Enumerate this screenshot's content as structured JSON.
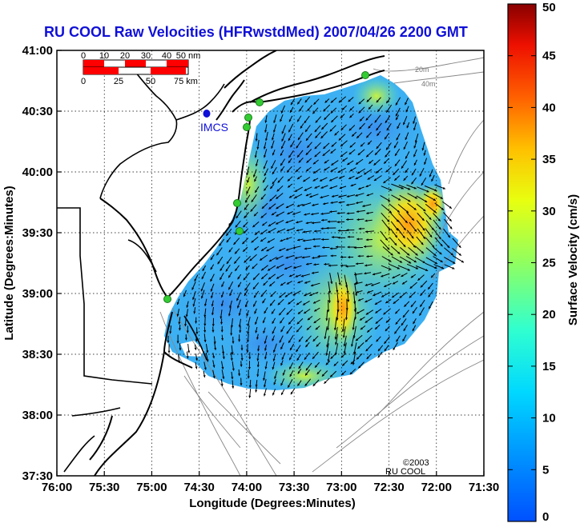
{
  "title": "RU COOL Raw Velocities (HFRwstdMed) 2007/04/26 2200 GMT",
  "x_axis": {
    "label": "Longitude (Degrees:Minutes)",
    "ticks": [
      "76:00",
      "75:30",
      "75:00",
      "74:30",
      "74:00",
      "73:30",
      "73:00",
      "72:30",
      "72:00",
      "71:30"
    ]
  },
  "y_axis": {
    "label": "Latitude (Degrees:Minutes)",
    "ticks": [
      "41:00",
      "40:30",
      "40:00",
      "39:30",
      "39:00",
      "38:30",
      "38:00",
      "37:30"
    ]
  },
  "colorbar": {
    "label": "Surface Velocity (cm/s)",
    "ticks": [
      "50",
      "45",
      "40",
      "35",
      "30",
      "25",
      "20",
      "15",
      "10",
      "5",
      "0"
    ],
    "range": [
      0,
      50
    ]
  },
  "scale_bar": {
    "nm_labels": [
      "0",
      "10",
      "20",
      "30",
      "40",
      "50 nm"
    ],
    "km_labels": [
      "0",
      "25",
      "50",
      "75 km"
    ]
  },
  "station_label": "IMCS",
  "contours": [
    "20m",
    "40m"
  ],
  "credit": [
    "©2003",
    "RU COOL"
  ],
  "colors": {
    "title": "#1010d8",
    "station": "#1010d8",
    "site_marker": "#33cc33"
  }
}
